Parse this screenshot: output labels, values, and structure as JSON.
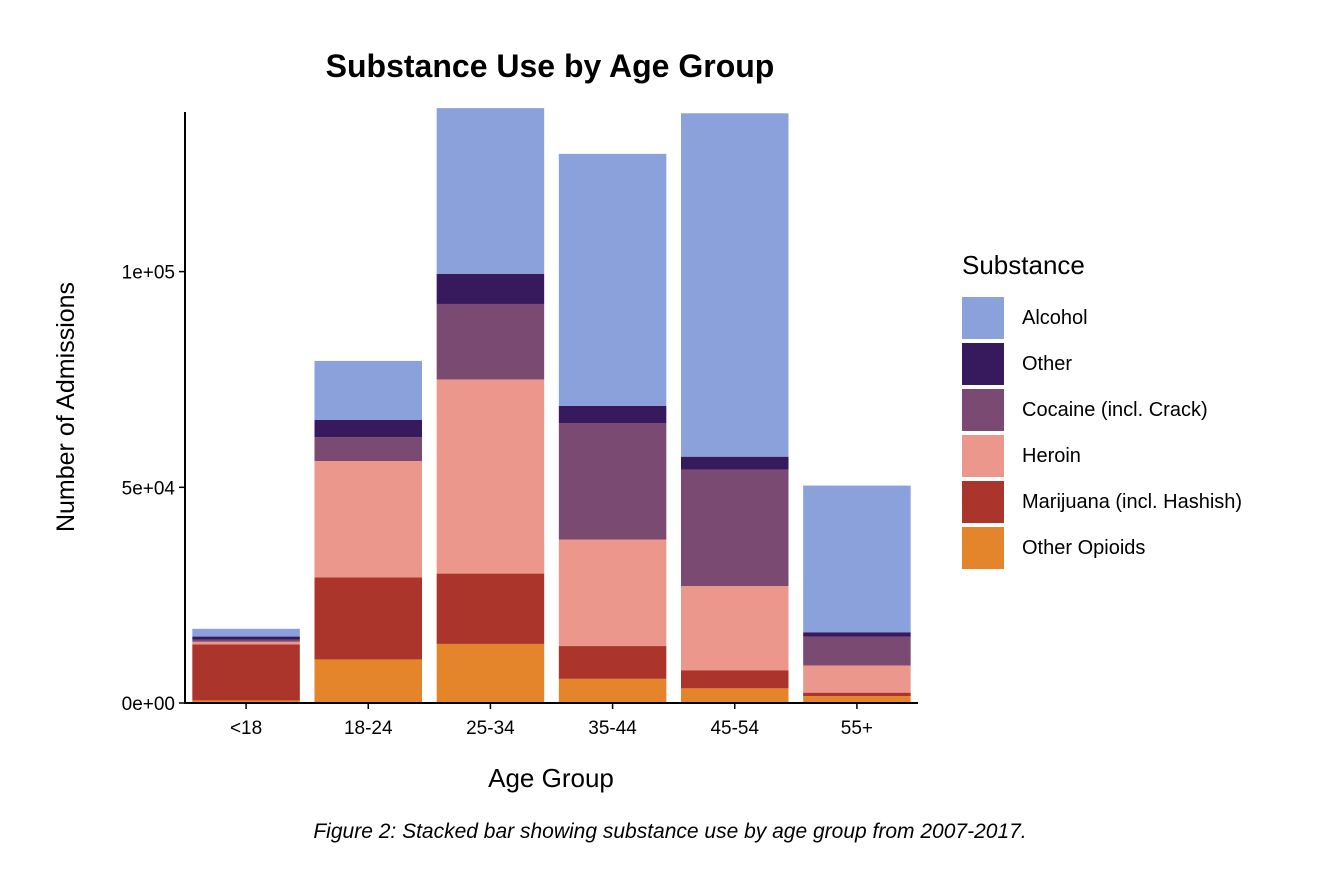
{
  "chart_data": {
    "type": "bar",
    "stacked": true,
    "title": "Substance Use by Age Group",
    "xlabel": "Age Group",
    "ylabel": "Number of Admissions",
    "caption": "Figure 2: Stacked bar showing substance use by age group from 2007-2017.",
    "ylim": [
      0,
      137000
    ],
    "yticks": [
      {
        "value": 0,
        "label": "0e+00"
      },
      {
        "value": 50000,
        "label": "5e+04"
      },
      {
        "value": 100000,
        "label": "1e+05"
      }
    ],
    "categories": [
      "<18",
      "18-24",
      "25-34",
      "35-44",
      "45-54",
      "55+"
    ],
    "legend_title": "Substance",
    "legend_position": "right",
    "stack_order_bottom_to_top": [
      "Other Opioids",
      "Marijuana (incl. Hashish)",
      "Heroin",
      "Cocaine (incl. Crack)",
      "Other",
      "Alcohol"
    ],
    "series": [
      {
        "name": "Alcohol",
        "color": "#8AA1DC",
        "values": [
          1800,
          13700,
          38400,
          58400,
          79600,
          34000
        ]
      },
      {
        "name": "Other",
        "color": "#371A5E",
        "values": [
          700,
          4000,
          7000,
          4000,
          3000,
          1000
        ]
      },
      {
        "name": "Cocaine (incl. Crack)",
        "color": "#7A4A72",
        "values": [
          500,
          5500,
          17500,
          27000,
          27000,
          6700
        ]
      },
      {
        "name": "Heroin",
        "color": "#EC978C",
        "values": [
          600,
          27000,
          45000,
          24700,
          19500,
          6300
        ]
      },
      {
        "name": "Marijuana (incl. Hashish)",
        "color": "#AB342B",
        "values": [
          13000,
          19000,
          16300,
          7600,
          4200,
          800
        ]
      },
      {
        "name": "Other Opioids",
        "color": "#E5852B",
        "values": [
          600,
          10100,
          13700,
          5600,
          3400,
          1600
        ]
      }
    ]
  }
}
